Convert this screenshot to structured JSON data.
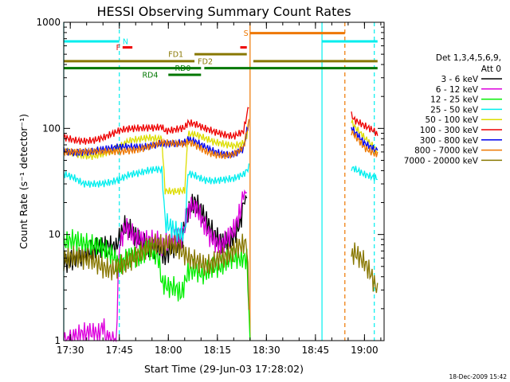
{
  "chart_data": {
    "type": "line",
    "title": "HESSI Observing Summary Count Rates",
    "xlabel": "Start Time (29-Jun-03 17:28:02)",
    "ylabel": "Count Rate (s⁻¹ detector⁻¹)",
    "x_ticks": [
      "17:30",
      "17:45",
      "18:00",
      "18:15",
      "18:30",
      "18:45",
      "19:00"
    ],
    "y_ticks": [
      "1",
      "10",
      "100",
      "1000"
    ],
    "ylim": [
      1,
      1000
    ],
    "yscale": "log",
    "xlim": [
      "17:28",
      "19:06"
    ],
    "legend_header": [
      "Det 1,3,4,5,6,9,",
      "Att 0"
    ],
    "legend_position": "right",
    "series": [
      {
        "name": "3 - 6 keV",
        "color": "#000000",
        "points": [
          [
            "17:28",
            6.5
          ],
          [
            "17:32",
            6.5
          ],
          [
            "17:36",
            6.3
          ],
          [
            "17:40",
            6.5
          ],
          [
            "17:44",
            6.8
          ],
          [
            "17:45",
            9
          ],
          [
            "17:47",
            13
          ],
          [
            "17:50",
            11
          ],
          [
            "17:54",
            9
          ],
          [
            "17:57",
            8
          ],
          [
            "17:58",
            7
          ],
          [
            "17:59",
            6
          ],
          [
            "18:00",
            6.5
          ],
          [
            "18:02",
            6.8
          ],
          [
            "18:04",
            7
          ],
          [
            "18:06",
            14
          ],
          [
            "18:08",
            18
          ],
          [
            "18:10",
            16
          ],
          [
            "18:13",
            12
          ],
          [
            "18:16",
            10
          ],
          [
            "18:18",
            10
          ],
          [
            "18:20",
            11
          ],
          [
            "18:22",
            14
          ],
          [
            "18:23",
            20
          ],
          [
            "18:24",
            22
          ]
        ]
      },
      {
        "name": "6 - 12 keV",
        "color": "#dd00dd",
        "points": [
          [
            "17:28",
            1
          ],
          [
            "17:32",
            1
          ],
          [
            "17:36",
            1
          ],
          [
            "17:39",
            1
          ],
          [
            "17:40",
            1.3
          ],
          [
            "17:41",
            1
          ],
          [
            "17:44",
            1
          ],
          [
            "17:45",
            9
          ],
          [
            "17:47",
            14
          ],
          [
            "17:50",
            11
          ],
          [
            "17:54",
            9
          ],
          [
            "17:57",
            8
          ],
          [
            "17:58",
            7
          ],
          [
            "17:59",
            7
          ],
          [
            "18:00",
            7.5
          ],
          [
            "18:02",
            8
          ],
          [
            "18:04",
            8
          ],
          [
            "18:06",
            16
          ],
          [
            "18:08",
            20
          ],
          [
            "18:10",
            16
          ],
          [
            "18:13",
            11
          ],
          [
            "18:16",
            9
          ],
          [
            "18:18",
            10
          ],
          [
            "18:20",
            11
          ],
          [
            "18:22",
            15
          ],
          [
            "18:23",
            22
          ],
          [
            "18:24",
            25
          ]
        ]
      },
      {
        "name": "12 - 25 keV",
        "color": "#00ee00",
        "points": [
          [
            "17:28",
            7.5
          ],
          [
            "17:31",
            7.5
          ],
          [
            "17:34",
            7
          ],
          [
            "17:37",
            7.5
          ],
          [
            "17:40",
            8
          ],
          [
            "17:43",
            7.5
          ],
          [
            "17:45",
            6
          ],
          [
            "17:48",
            7
          ],
          [
            "17:51",
            6
          ],
          [
            "17:54",
            6.5
          ],
          [
            "17:57",
            5
          ],
          [
            "17:58",
            3
          ],
          [
            "18:00",
            2.8
          ],
          [
            "18:02",
            3
          ],
          [
            "18:04",
            2.8
          ],
          [
            "18:06",
            5
          ],
          [
            "18:08",
            5.5
          ],
          [
            "18:11",
            5
          ],
          [
            "18:13",
            5.5
          ],
          [
            "18:16",
            5
          ],
          [
            "18:19",
            5.3
          ],
          [
            "18:22",
            5
          ],
          [
            "18:24",
            5
          ],
          [
            "18:25",
            1
          ]
        ]
      },
      {
        "name": "25 - 50 keV",
        "color": "#00eeee",
        "points": [
          [
            "17:28",
            35
          ],
          [
            "17:31",
            33
          ],
          [
            "17:34",
            30
          ],
          [
            "17:37",
            31
          ],
          [
            "17:40",
            32
          ],
          [
            "17:43",
            33
          ],
          [
            "17:45",
            34
          ],
          [
            "17:48",
            36
          ],
          [
            "17:51",
            36
          ],
          [
            "17:54",
            38
          ],
          [
            "17:57",
            40
          ],
          [
            "17:58",
            40
          ],
          [
            "17:59",
            13
          ],
          [
            "18:02",
            12
          ],
          [
            "18:05",
            12
          ],
          [
            "18:06",
            40
          ],
          [
            "18:08",
            38
          ],
          [
            "18:11",
            33
          ],
          [
            "18:14",
            31
          ],
          [
            "18:17",
            31
          ],
          [
            "18:20",
            32
          ],
          [
            "18:23",
            36
          ],
          [
            "18:24",
            40
          ],
          [
            "18:25",
            45
          ],
          [
            "18:56",
            45
          ],
          [
            "18:57",
            44
          ],
          [
            "19:00",
            38
          ],
          [
            "19:03",
            34
          ],
          [
            "19:04",
            33
          ]
        ]
      },
      {
        "name": "50 - 100 keV",
        "color": "#dddd00",
        "points": [
          [
            "17:28",
            60
          ],
          [
            "17:31",
            59
          ],
          [
            "17:34",
            58
          ],
          [
            "17:37",
            58
          ],
          [
            "17:40",
            60
          ],
          [
            "17:43",
            62
          ],
          [
            "17:45",
            65
          ],
          [
            "17:48",
            72
          ],
          [
            "17:51",
            75
          ],
          [
            "17:54",
            80
          ],
          [
            "17:57",
            82
          ],
          [
            "17:58",
            83
          ],
          [
            "17:59",
            27
          ],
          [
            "18:02",
            27
          ],
          [
            "18:05",
            27
          ],
          [
            "18:06",
            90
          ],
          [
            "18:08",
            88
          ],
          [
            "18:11",
            78
          ],
          [
            "18:14",
            70
          ],
          [
            "18:17",
            68
          ],
          [
            "18:20",
            68
          ],
          [
            "18:23",
            75
          ],
          [
            "18:24",
            90
          ],
          [
            "18:25",
            150
          ],
          [
            "18:56",
            120
          ],
          [
            "18:57",
            105
          ],
          [
            "19:00",
            80
          ],
          [
            "19:03",
            62
          ],
          [
            "19:04",
            60
          ]
        ]
      },
      {
        "name": "100 - 300 keV",
        "color": "#ee0000",
        "points": [
          [
            "17:28",
            85
          ],
          [
            "17:31",
            82
          ],
          [
            "17:34",
            80
          ],
          [
            "17:37",
            79
          ],
          [
            "17:40",
            80
          ],
          [
            "17:43",
            85
          ],
          [
            "17:45",
            90
          ],
          [
            "17:48",
            95
          ],
          [
            "17:51",
            100
          ],
          [
            "17:54",
            105
          ],
          [
            "17:57",
            108
          ],
          [
            "17:58",
            110
          ],
          [
            "17:59",
            100
          ],
          [
            "18:02",
            100
          ],
          [
            "18:05",
            100
          ],
          [
            "18:06",
            110
          ],
          [
            "18:08",
            105
          ],
          [
            "18:11",
            95
          ],
          [
            "18:14",
            90
          ],
          [
            "18:17",
            88
          ],
          [
            "18:20",
            88
          ],
          [
            "18:23",
            100
          ],
          [
            "18:24",
            140
          ],
          [
            "18:25",
            200
          ],
          [
            "18:56",
            130
          ],
          [
            "18:57",
            115
          ],
          [
            "19:00",
            100
          ],
          [
            "19:03",
            90
          ],
          [
            "19:04",
            85
          ]
        ]
      },
      {
        "name": "300 - 800 keV",
        "color": "#0000ee",
        "points": [
          [
            "17:28",
            65
          ],
          [
            "17:31",
            62
          ],
          [
            "17:34",
            60
          ],
          [
            "17:37",
            59
          ],
          [
            "17:40",
            60
          ],
          [
            "17:43",
            62
          ],
          [
            "17:45",
            65
          ],
          [
            "17:48",
            68
          ],
          [
            "17:51",
            70
          ],
          [
            "17:54",
            72
          ],
          [
            "17:57",
            74
          ],
          [
            "17:58",
            75
          ],
          [
            "17:59",
            72
          ],
          [
            "18:02",
            70
          ],
          [
            "18:05",
            70
          ],
          [
            "18:06",
            75
          ],
          [
            "18:08",
            72
          ],
          [
            "18:11",
            66
          ],
          [
            "18:14",
            62
          ],
          [
            "18:17",
            60
          ],
          [
            "18:20",
            60
          ],
          [
            "18:23",
            66
          ],
          [
            "18:24",
            95
          ],
          [
            "18:25",
            130
          ],
          [
            "18:56",
            95
          ],
          [
            "18:57",
            88
          ],
          [
            "19:00",
            70
          ],
          [
            "19:03",
            64
          ],
          [
            "19:04",
            62
          ]
        ]
      },
      {
        "name": "800 - 7000 keV",
        "color": "#ee7700",
        "points": [
          [
            "17:28",
            62
          ],
          [
            "17:31",
            60
          ],
          [
            "17:34",
            58
          ],
          [
            "17:37",
            57
          ],
          [
            "17:40",
            58
          ],
          [
            "17:43",
            60
          ],
          [
            "17:45",
            62
          ],
          [
            "17:48",
            65
          ],
          [
            "17:51",
            67
          ],
          [
            "17:54",
            69
          ],
          [
            "17:57",
            71
          ],
          [
            "17:58",
            72
          ],
          [
            "17:59",
            70
          ],
          [
            "18:02",
            68
          ],
          [
            "18:05",
            68
          ],
          [
            "18:06",
            72
          ],
          [
            "18:08",
            70
          ],
          [
            "18:11",
            64
          ],
          [
            "18:14",
            60
          ],
          [
            "18:17",
            58
          ],
          [
            "18:20",
            58
          ],
          [
            "18:23",
            64
          ],
          [
            "18:24",
            90
          ],
          [
            "18:25",
            120
          ],
          [
            "18:56",
            90
          ],
          [
            "18:57",
            84
          ],
          [
            "19:00",
            67
          ],
          [
            "19:03",
            61
          ],
          [
            "19:04",
            60
          ]
        ]
      },
      {
        "name": "7000 - 20000 keV",
        "color": "#887700",
        "points": [
          [
            "17:28",
            5.5
          ],
          [
            "17:31",
            5.3
          ],
          [
            "17:34",
            5
          ],
          [
            "17:37",
            5.2
          ],
          [
            "17:40",
            5
          ],
          [
            "17:43",
            5.3
          ],
          [
            "17:45",
            6
          ],
          [
            "17:48",
            6.5
          ],
          [
            "17:51",
            6.8
          ],
          [
            "17:54",
            7
          ],
          [
            "17:57",
            7
          ],
          [
            "17:58",
            6.5
          ],
          [
            "18:00",
            7
          ],
          [
            "18:03",
            7
          ],
          [
            "18:06",
            6.5
          ],
          [
            "18:09",
            6.5
          ],
          [
            "18:12",
            6
          ],
          [
            "18:15",
            6.3
          ],
          [
            "18:18",
            6
          ],
          [
            "18:21",
            6.5
          ],
          [
            "18:24",
            7
          ],
          [
            "18:25",
            1
          ],
          [
            "18:56",
            6.5
          ],
          [
            "18:57",
            7.5
          ],
          [
            "19:00",
            6.5
          ],
          [
            "19:02",
            5
          ],
          [
            "19:03",
            4
          ],
          [
            "19:04",
            3.5
          ]
        ]
      }
    ],
    "vertical_markers": [
      {
        "time": "17:45",
        "style": "dashed",
        "color": "#00eeee"
      },
      {
        "time": "18:25",
        "style": "solid",
        "color": "#ee7700"
      },
      {
        "time": "18:47",
        "style": "solid",
        "color": "#00eeee"
      },
      {
        "time": "18:54",
        "style": "dashed",
        "color": "#ee7700"
      },
      {
        "time": "19:03",
        "style": "dashed",
        "color": "#00eeee"
      },
      {
        "time": "17:28",
        "style": "solid",
        "color": "#00eeee"
      }
    ],
    "flags": [
      {
        "label": "N",
        "color": "#00eeee",
        "y": 660,
        "start": "17:28",
        "end": "17:45",
        "label_at": "17:46"
      },
      {
        "label": "N",
        "color": "#00eeee",
        "y": 660,
        "start": "18:47",
        "end": "19:04",
        "label_at": ""
      },
      {
        "label": "S",
        "color": "#ee7700",
        "y": 790,
        "start": "18:25",
        "end": "18:54",
        "label_at": "18:23"
      },
      {
        "label": "F",
        "color": "#ee0000",
        "y": 580,
        "start": "17:46",
        "end": "17:49",
        "label_at": "17:44"
      },
      {
        "label": "F",
        "color": "#ee0000",
        "y": 580,
        "start": "18:22",
        "end": "18:24",
        "label_at": ""
      },
      {
        "label": "FD1",
        "color": "#887700",
        "y": 500,
        "start": "18:08",
        "end": "18:24",
        "label_at": "18:00"
      },
      {
        "label": "FD2",
        "color": "#887700",
        "y": 430,
        "start": "17:28",
        "end": "18:08",
        "label_at": "18:09"
      },
      {
        "label": "FD2",
        "color": "#887700",
        "y": 430,
        "start": "18:26",
        "end": "19:04",
        "label_at": ""
      },
      {
        "label": "RD0",
        "color": "#007700",
        "y": 370,
        "start": "17:28",
        "end": "18:10",
        "label_at": "18:02"
      },
      {
        "label": "RD0",
        "color": "#007700",
        "y": 370,
        "start": "18:11",
        "end": "19:04",
        "label_at": ""
      },
      {
        "label": "RD4",
        "color": "#007700",
        "y": 320,
        "start": "18:00",
        "end": "18:10",
        "label_at": "17:52"
      }
    ],
    "gap": [
      "18:25",
      "18:56"
    ]
  },
  "footer_stamp": "18-Dec-2009 15:42"
}
